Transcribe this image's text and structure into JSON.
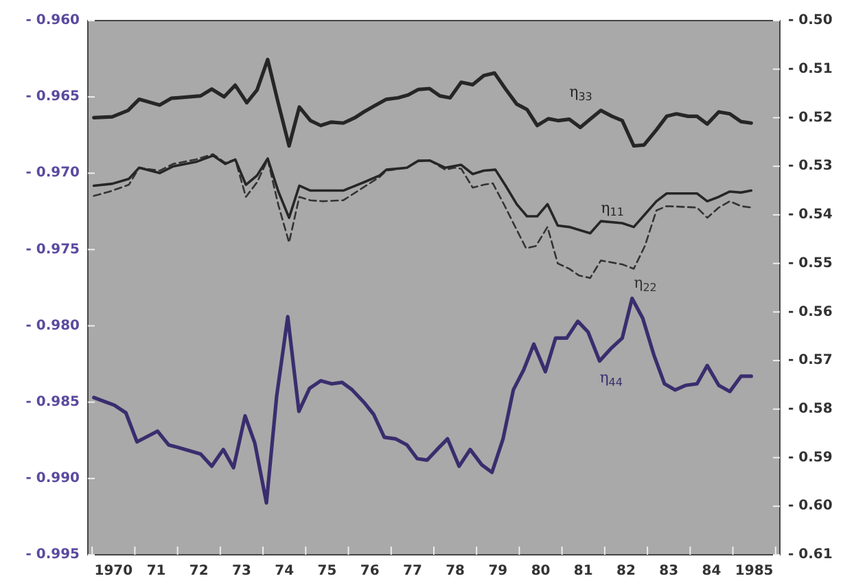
{
  "chart_data": {
    "type": "line",
    "xlim": [
      1969.4,
      1985.6
    ],
    "xticks": [
      {
        "value": 1969.5,
        "label": null
      },
      1970,
      {
        "value": 1970.5,
        "label": null
      },
      {
        "value": 1971,
        "label": "71"
      },
      {
        "value": 1971.5,
        "label": null
      },
      {
        "value": 1972,
        "label": "72"
      },
      {
        "value": 1972.5,
        "label": null
      },
      {
        "value": 1973,
        "label": "73"
      },
      {
        "value": 1973.5,
        "label": null
      },
      {
        "value": 1974,
        "label": "74"
      },
      {
        "value": 1974.5,
        "label": null
      },
      {
        "value": 1975,
        "label": "75"
      },
      {
        "value": 1975.5,
        "label": null
      },
      {
        "value": 1976,
        "label": "76"
      },
      {
        "value": 1976.5,
        "label": null
      },
      {
        "value": 1977,
        "label": "77"
      },
      {
        "value": 1977.5,
        "label": null
      },
      {
        "value": 1978,
        "label": "78"
      },
      {
        "value": 1978.5,
        "label": null
      },
      {
        "value": 1979,
        "label": "79"
      },
      {
        "value": 1979.5,
        "label": null
      },
      {
        "value": 1980,
        "label": "80"
      },
      {
        "value": 1980.5,
        "label": null
      },
      {
        "value": 1981,
        "label": "81"
      },
      {
        "value": 1981.5,
        "label": null
      },
      {
        "value": 1982,
        "label": "82"
      },
      {
        "value": 1982.5,
        "label": null
      },
      {
        "value": 1983,
        "label": "83"
      },
      {
        "value": 1983.5,
        "label": null
      },
      {
        "value": 1984,
        "label": "84"
      },
      {
        "value": 1984.5,
        "label": null
      },
      1985,
      {
        "value": 1985.5,
        "label": null
      }
    ],
    "ylim": [
      -0.995,
      -0.96
    ],
    "yticks": [
      {
        "value": -0.995,
        "label": "- 0.995"
      },
      {
        "value": -0.99,
        "label": "- 0.990"
      },
      {
        "value": -0.985,
        "label": "- 0.985"
      },
      {
        "value": -0.98,
        "label": "- 0.980"
      },
      {
        "value": -0.975,
        "label": "- 0.975"
      },
      {
        "value": -0.97,
        "label": "- 0.970"
      },
      {
        "value": -0.965,
        "label": "- 0.965"
      },
      {
        "value": -0.96,
        "label": "- 0.960"
      }
    ],
    "y2lim": [
      -0.61,
      -0.5
    ],
    "y2ticks": [
      {
        "value": -0.61,
        "label": "- 0.61"
      },
      {
        "value": -0.6,
        "label": "- 0.60"
      },
      {
        "value": -0.59,
        "label": "- 0.59"
      },
      {
        "value": -0.58,
        "label": "- 0.58"
      },
      {
        "value": -0.57,
        "label": "- 0.57"
      },
      {
        "value": -0.56,
        "label": "- 0.56"
      },
      {
        "value": -0.55,
        "label": "- 0.55"
      },
      {
        "value": -0.54,
        "label": "- 0.54"
      },
      {
        "value": -0.53,
        "label": "- 0.53"
      },
      {
        "value": -0.52,
        "label": "- 0.52"
      },
      {
        "value": -0.51,
        "label": "- 0.51"
      },
      {
        "value": -0.5,
        "label": "- 0.50"
      }
    ],
    "grid": false,
    "legend": false,
    "marker": "none",
    "series": [
      {
        "name": "η$_{33}$",
        "color": "#262626",
        "axis": "y2",
        "line_style": "solid",
        "x": [
          1969.54,
          1969.97,
          1970.34,
          1970.6,
          1971.08,
          1971.35,
          1972.04,
          1972.3,
          1972.59,
          1972.85,
          1973.12,
          1973.36,
          1973.61,
          1973.84,
          1974.11,
          1974.35,
          1974.61,
          1974.85,
          1975.1,
          1975.38,
          1975.65,
          1975.86,
          1976.12,
          1976.39,
          1976.66,
          1976.9,
          1977.13,
          1977.4,
          1977.64,
          1977.88,
          1978.14,
          1978.41,
          1978.67,
          1978.92,
          1979.18,
          1979.44,
          1979.68,
          1979.92,
          1980.18,
          1980.42,
          1980.67,
          1980.93,
          1981.16,
          1981.41,
          1981.67,
          1981.91,
          1982.18,
          1982.42,
          1982.71,
          1982.95,
          1983.18,
          1983.45,
          1983.66,
          1983.9,
          1984.17,
          1984.43,
          1984.69,
          1984.93
        ],
        "values": [
          -0.52,
          -0.5198,
          -0.5185,
          -0.5162,
          -0.5174,
          -0.516,
          -0.5155,
          -0.5141,
          -0.5157,
          -0.5133,
          -0.5169,
          -0.5143,
          -0.508,
          -0.5164,
          -0.5258,
          -0.5178,
          -0.5206,
          -0.5216,
          -0.5209,
          -0.5211,
          -0.52,
          -0.5188,
          -0.5175,
          -0.5162,
          -0.5159,
          -0.5153,
          -0.5142,
          -0.514,
          -0.5155,
          -0.5159,
          -0.5127,
          -0.5132,
          -0.5113,
          -0.5108,
          -0.5141,
          -0.5172,
          -0.5183,
          -0.5216,
          -0.5202,
          -0.5206,
          -0.5203,
          -0.522,
          -0.5203,
          -0.5185,
          -0.5197,
          -0.5206,
          -0.5258,
          -0.5256,
          -0.5225,
          -0.5197,
          -0.5192,
          -0.5197,
          -0.5197,
          -0.5213,
          -0.5188,
          -0.5192,
          -0.5208,
          -0.5211
        ]
      },
      {
        "name": "η$_{11}$",
        "color": "#262626",
        "axis": "y2",
        "line_style": "solid",
        "x": [
          1969.54,
          1969.97,
          1970.36,
          1970.6,
          1971.08,
          1971.4,
          1971.93,
          1972.33,
          1972.62,
          1972.85,
          1973.1,
          1973.36,
          1973.61,
          1973.86,
          1974.11,
          1974.35,
          1974.61,
          1975.38,
          1975.86,
          1976.23,
          1976.39,
          1976.87,
          1977.13,
          1977.4,
          1977.77,
          1978.14,
          1978.41,
          1978.67,
          1978.94,
          1979.18,
          1979.44,
          1979.68,
          1979.92,
          1980.16,
          1980.4,
          1980.67,
          1981.16,
          1981.41,
          1981.91,
          1982.18,
          1982.44,
          1982.71,
          1982.95,
          1983.66,
          1983.9,
          1984.17,
          1984.43,
          1984.69,
          1984.93
        ],
        "values": [
          -0.534,
          -0.5336,
          -0.5326,
          -0.5303,
          -0.5314,
          -0.53,
          -0.5291,
          -0.5278,
          -0.5295,
          -0.5286,
          -0.5338,
          -0.5319,
          -0.5284,
          -0.5352,
          -0.5406,
          -0.534,
          -0.535,
          -0.535,
          -0.5333,
          -0.5319,
          -0.5307,
          -0.5303,
          -0.5289,
          -0.5288,
          -0.5303,
          -0.5297,
          -0.5316,
          -0.5309,
          -0.5307,
          -0.534,
          -0.5378,
          -0.5403,
          -0.5403,
          -0.5378,
          -0.5422,
          -0.5425,
          -0.5438,
          -0.5413,
          -0.5417,
          -0.5425,
          -0.5399,
          -0.5372,
          -0.5356,
          -0.5356,
          -0.5372,
          -0.5363,
          -0.5352,
          -0.5354,
          -0.535
        ]
      },
      {
        "name": "η$_{22}$",
        "color": "#333333",
        "axis": "y2",
        "line_style": "dashed",
        "x": [
          1969.54,
          1969.91,
          1970.36,
          1970.6,
          1971.08,
          1971.4,
          1971.93,
          1972.33,
          1972.62,
          1972.85,
          1973.1,
          1973.36,
          1973.61,
          1973.86,
          1974.11,
          1974.35,
          1974.61,
          1974.9,
          1975.38,
          1976.23,
          1976.39,
          1976.87,
          1977.13,
          1977.4,
          1977.77,
          1977.98,
          1978.14,
          1978.41,
          1978.67,
          1978.88,
          1979.15,
          1979.44,
          1979.66,
          1979.89,
          1980.16,
          1980.4,
          1980.67,
          1980.9,
          1981.16,
          1981.41,
          1981.91,
          1982.18,
          1982.44,
          1982.71,
          1982.95,
          1983.66,
          1983.9,
          1984.17,
          1984.43,
          1984.69,
          1984.93
        ],
        "values": [
          -0.5361,
          -0.5352,
          -0.5338,
          -0.5303,
          -0.5309,
          -0.5295,
          -0.5286,
          -0.5275,
          -0.5293,
          -0.5286,
          -0.5363,
          -0.5333,
          -0.5286,
          -0.538,
          -0.5457,
          -0.5363,
          -0.537,
          -0.5372,
          -0.537,
          -0.5322,
          -0.5309,
          -0.5303,
          -0.5288,
          -0.5288,
          -0.5307,
          -0.5303,
          -0.5305,
          -0.5344,
          -0.5338,
          -0.5335,
          -0.538,
          -0.5431,
          -0.5469,
          -0.5464,
          -0.5425,
          -0.55,
          -0.5511,
          -0.5525,
          -0.553,
          -0.5494,
          -0.5502,
          -0.5511,
          -0.5464,
          -0.5391,
          -0.5382,
          -0.5385,
          -0.5406,
          -0.5385,
          -0.5372,
          -0.5382,
          -0.5385
        ]
      },
      {
        "name": "η$_{44}$",
        "color": "#3a2d6e",
        "axis": "y",
        "line_style": "solid",
        "x": [
          1969.54,
          1970.02,
          1970.29,
          1970.55,
          1971.03,
          1971.29,
          1971.56,
          1972.04,
          1972.3,
          1972.57,
          1972.81,
          1973.08,
          1973.31,
          1973.58,
          1973.82,
          1974.08,
          1974.34,
          1974.59,
          1974.85,
          1975.11,
          1975.35,
          1975.59,
          1975.86,
          1976.09,
          1976.34,
          1976.6,
          1976.87,
          1977.11,
          1977.34,
          1977.61,
          1977.82,
          1978.09,
          1978.35,
          1978.62,
          1978.86,
          1979.12,
          1979.36,
          1979.6,
          1979.84,
          1980.11,
          1980.35,
          1980.61,
          1980.87,
          1981.11,
          1981.38,
          1981.64,
          1981.91,
          1982.14,
          1982.39,
          1982.65,
          1982.9,
          1983.15,
          1983.39,
          1983.66,
          1983.9,
          1984.17,
          1984.43,
          1984.69,
          1984.93
        ],
        "values": [
          -0.9847,
          -0.9852,
          -0.9857,
          -0.9876,
          -0.9869,
          -0.9878,
          -0.988,
          -0.9884,
          -0.9892,
          -0.9881,
          -0.9893,
          -0.9859,
          -0.9877,
          -0.9916,
          -0.9846,
          -0.9794,
          -0.9856,
          -0.9841,
          -0.9836,
          -0.9838,
          -0.9837,
          -0.9842,
          -0.985,
          -0.9858,
          -0.9873,
          -0.9874,
          -0.9878,
          -0.9887,
          -0.9888,
          -0.988,
          -0.9874,
          -0.9892,
          -0.9881,
          -0.9891,
          -0.9896,
          -0.9874,
          -0.9842,
          -0.9829,
          -0.9812,
          -0.983,
          -0.9808,
          -0.9808,
          -0.9797,
          -0.9804,
          -0.9823,
          -0.9815,
          -0.9808,
          -0.9782,
          -0.9795,
          -0.9819,
          -0.9838,
          -0.9842,
          -0.9839,
          -0.9838,
          -0.9826,
          -0.9839,
          -0.9843,
          -0.9833,
          -0.9833
        ]
      }
    ]
  }
}
